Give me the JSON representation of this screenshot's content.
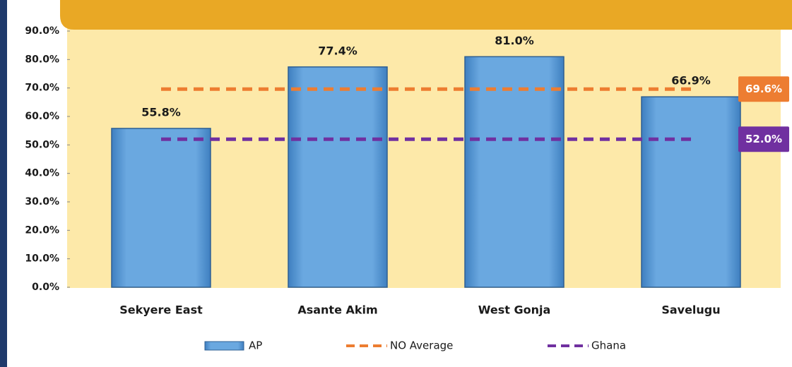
{
  "chart_data": {
    "type": "bar",
    "categories": [
      "Sekyere East",
      "Asante Akim",
      "West Gonja",
      "Savelugu"
    ],
    "series": [
      {
        "name": "AP",
        "type": "bar",
        "color": "#5b9bd5",
        "values": [
          55.8,
          77.4,
          81.0,
          66.9
        ],
        "value_labels": [
          "55.8%",
          "77.4%",
          "81.0%",
          "66.9%"
        ]
      },
      {
        "name": "NO Average",
        "type": "line",
        "color": "#ed7d31",
        "values": [
          69.6,
          69.6,
          69.6,
          69.6
        ],
        "end_label": "69.6%"
      },
      {
        "name": "Ghana",
        "type": "line",
        "color": "#7030a0",
        "values": [
          52.0,
          52.0,
          52.0,
          52.0
        ],
        "end_label": "52.0%"
      }
    ],
    "ylim": [
      0,
      90
    ],
    "yticks": [
      {
        "value": 0,
        "label": "0.0%"
      },
      {
        "value": 10,
        "label": "10.0%"
      },
      {
        "value": 20,
        "label": "20.0%"
      },
      {
        "value": 30,
        "label": "30.0%"
      },
      {
        "value": 40,
        "label": "40.0%"
      },
      {
        "value": 50,
        "label": "50.0%"
      },
      {
        "value": 60,
        "label": "60.0%"
      },
      {
        "value": 70,
        "label": "70.0%"
      },
      {
        "value": 80,
        "label": "80.0%"
      },
      {
        "value": 90,
        "label": "90.0%"
      }
    ],
    "legend": "bottom"
  }
}
